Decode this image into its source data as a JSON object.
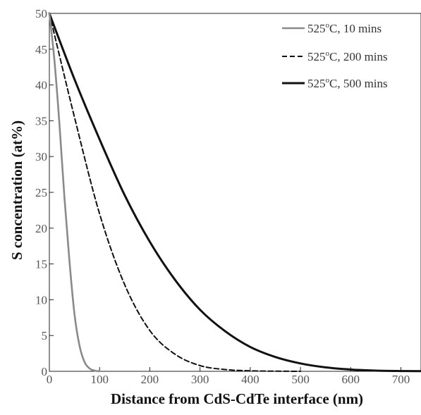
{
  "chart_data": {
    "type": "line",
    "title": "",
    "xlabel": "Distance from CdS-CdTe interface (nm)",
    "ylabel": "S concentration (at%)",
    "xlim": [
      0,
      740
    ],
    "ylim": [
      0,
      50
    ],
    "x_ticks": [
      0,
      100,
      200,
      300,
      400,
      500,
      600,
      700
    ],
    "y_ticks": [
      0,
      5,
      10,
      15,
      20,
      25,
      30,
      35,
      40,
      45,
      50
    ],
    "grid": false,
    "legend_position": "top-right",
    "series": [
      {
        "name": "525°C, 10 mins",
        "name_base": "525",
        "name_sup": "o",
        "name_rest": "C, 10 mins",
        "color": "#8a8a8a",
        "dash": "solid",
        "x": [
          0,
          10,
          20,
          30,
          40,
          50,
          60,
          70,
          80,
          90,
          100
        ],
        "y": [
          50,
          43.5,
          34.6,
          24.3,
          15.4,
          8.0,
          3.6,
          1.3,
          0.4,
          0.1,
          0
        ]
      },
      {
        "name": "525°C, 200 mins",
        "name_base": "525",
        "name_sup": "o",
        "name_rest": "C, 200 mins",
        "color": "#111111",
        "dash": "dashed",
        "x": [
          0,
          50,
          100,
          150,
          200,
          250,
          300,
          350,
          400,
          450,
          500
        ],
        "y": [
          50,
          35.5,
          22.0,
          12.1,
          5.7,
          2.4,
          0.8,
          0.25,
          0.07,
          0.02,
          0
        ]
      },
      {
        "name": "525°C, 500 mins",
        "name_base": "525",
        "name_sup": "o",
        "name_rest": "C, 500 mins",
        "color": "#111111",
        "dash": "solid",
        "x": [
          0,
          50,
          100,
          150,
          200,
          250,
          300,
          350,
          400,
          450,
          500,
          550,
          600,
          650,
          700,
          740
        ],
        "y": [
          50,
          40.8,
          32.4,
          24.6,
          18.1,
          12.8,
          8.6,
          5.6,
          3.4,
          2.0,
          1.1,
          0.55,
          0.25,
          0.1,
          0.04,
          0.02
        ]
      }
    ]
  }
}
